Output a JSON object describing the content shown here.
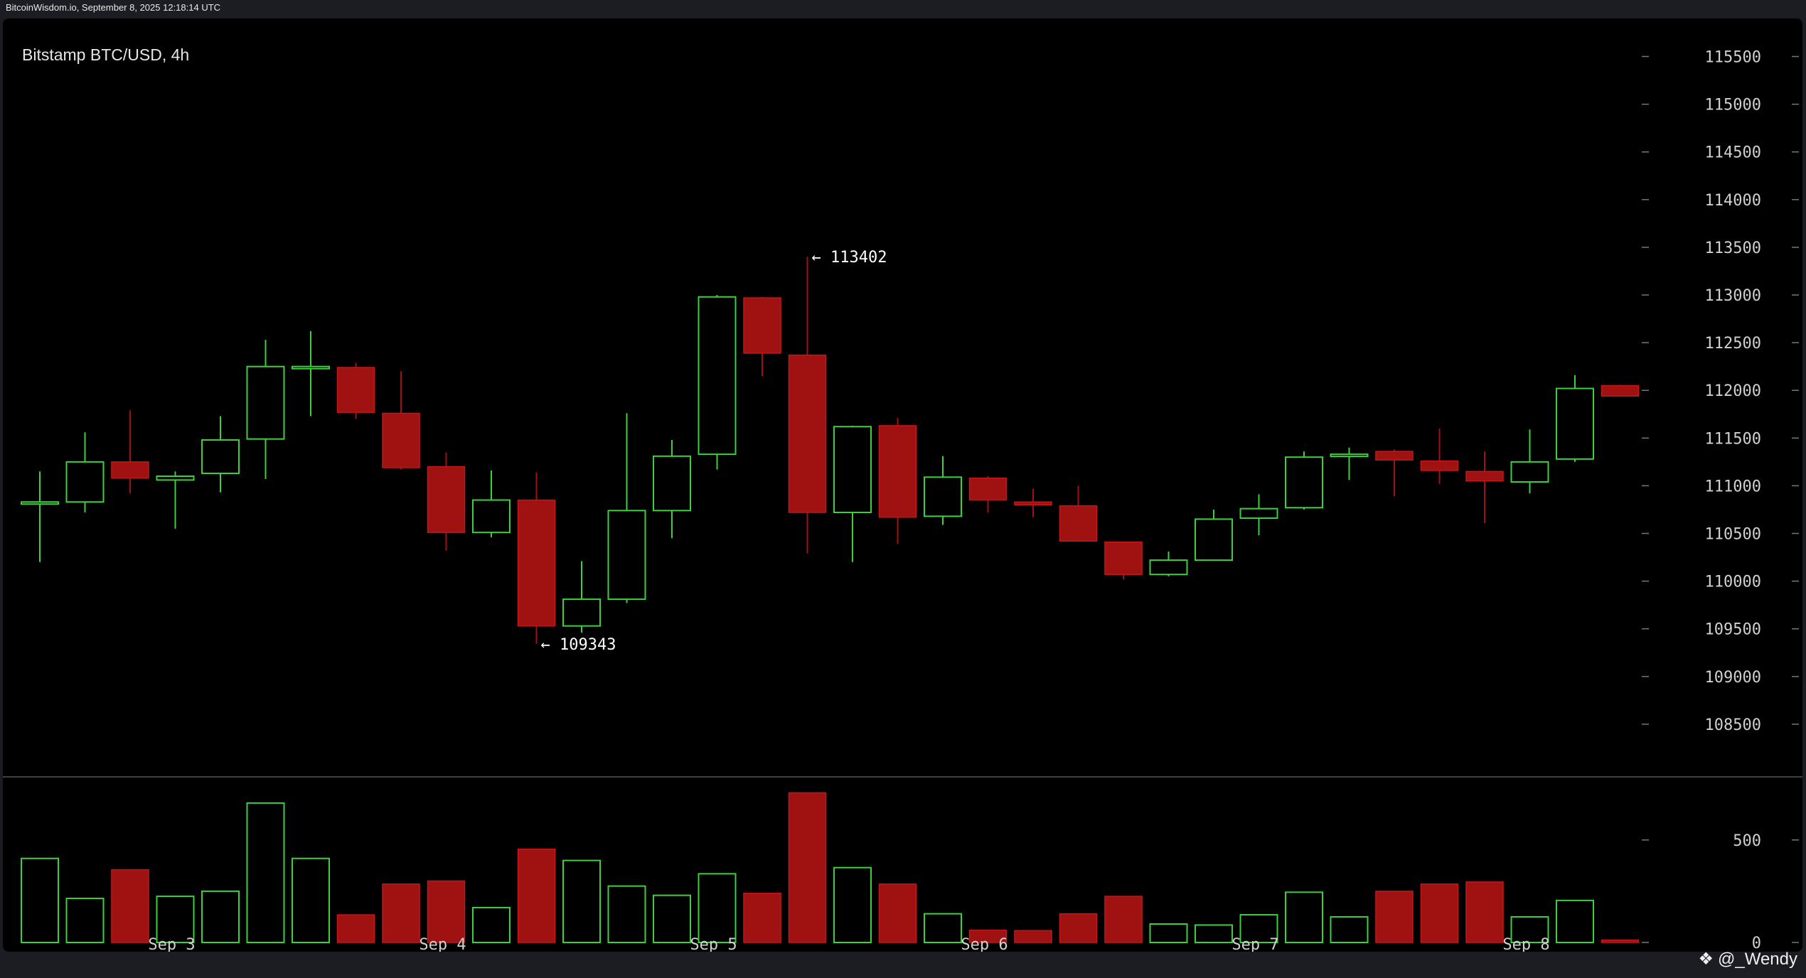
{
  "source_line": "BitcoinWisdom.io, September 8, 2025 12:18:14 UTC",
  "watermark": {
    "handle": "@_Wendy",
    "icon": "bitget-logo-icon"
  },
  "colors": {
    "up": "#3ad13a",
    "down": "#a01212",
    "background": "#000000"
  },
  "chart_data": {
    "type": "candlestick",
    "title": "Bitstamp BTC/USD, 4h",
    "price_ticks": [
      108500,
      109000,
      109500,
      110000,
      110500,
      111000,
      111500,
      112000,
      112500,
      113000,
      113500,
      114000,
      114500,
      115000,
      115500
    ],
    "ylim": [
      108000,
      115750
    ],
    "x_ticks": [
      {
        "label": "Sep 3",
        "index": 3
      },
      {
        "label": "Sep 4",
        "index": 9
      },
      {
        "label": "Sep 5",
        "index": 15
      },
      {
        "label": "Sep 6",
        "index": 21
      },
      {
        "label": "Sep 7",
        "index": 27
      },
      {
        "label": "Sep 8",
        "index": 33
      }
    ],
    "annotations": [
      {
        "text": "← 113402",
        "index": 17,
        "price": 113402
      },
      {
        "text": "← 109343",
        "index": 11,
        "price": 109343
      }
    ],
    "candles": [
      {
        "o": 110830,
        "h": 111150,
        "l": 110200,
        "c": 110830,
        "v": 410
      },
      {
        "o": 110830,
        "h": 111560,
        "l": 110720,
        "c": 111250,
        "v": 215
      },
      {
        "o": 111250,
        "h": 111790,
        "l": 110920,
        "c": 111080,
        "v": 355
      },
      {
        "o": 111060,
        "h": 111150,
        "l": 110550,
        "c": 111100,
        "v": 225
      },
      {
        "o": 111130,
        "h": 111730,
        "l": 110930,
        "c": 111480,
        "v": 250
      },
      {
        "o": 111490,
        "h": 112530,
        "l": 111070,
        "c": 112250,
        "v": 680
      },
      {
        "o": 112250,
        "h": 112620,
        "l": 111730,
        "c": 112250,
        "v": 410
      },
      {
        "o": 112240,
        "h": 112290,
        "l": 111700,
        "c": 111770,
        "v": 135
      },
      {
        "o": 111760,
        "h": 112200,
        "l": 111170,
        "c": 111190,
        "v": 285
      },
      {
        "o": 111200,
        "h": 111350,
        "l": 110320,
        "c": 110510,
        "v": 300
      },
      {
        "o": 110510,
        "h": 111160,
        "l": 110460,
        "c": 110850,
        "v": 170
      },
      {
        "o": 110850,
        "h": 111140,
        "l": 109343,
        "c": 109530,
        "v": 455
      },
      {
        "o": 109530,
        "h": 110210,
        "l": 109460,
        "c": 109810,
        "v": 400
      },
      {
        "o": 109810,
        "h": 111760,
        "l": 109770,
        "c": 110740,
        "v": 275
      },
      {
        "o": 110740,
        "h": 111480,
        "l": 110450,
        "c": 111310,
        "v": 230
      },
      {
        "o": 111330,
        "h": 113000,
        "l": 111170,
        "c": 112980,
        "v": 335
      },
      {
        "o": 112970,
        "h": 112980,
        "l": 112150,
        "c": 112390,
        "v": 240
      },
      {
        "o": 112370,
        "h": 113402,
        "l": 110290,
        "c": 110720,
        "v": 730
      },
      {
        "o": 110720,
        "h": 111630,
        "l": 110200,
        "c": 111620,
        "v": 365
      },
      {
        "o": 111630,
        "h": 111710,
        "l": 110390,
        "c": 110670,
        "v": 285
      },
      {
        "o": 110680,
        "h": 111310,
        "l": 110590,
        "c": 111090,
        "v": 140
      },
      {
        "o": 111080,
        "h": 111100,
        "l": 110720,
        "c": 110850,
        "v": 60
      },
      {
        "o": 110830,
        "h": 110970,
        "l": 110670,
        "c": 110800,
        "v": 58
      },
      {
        "o": 110790,
        "h": 111000,
        "l": 110410,
        "c": 110420,
        "v": 140
      },
      {
        "o": 110410,
        "h": 110410,
        "l": 110020,
        "c": 110070,
        "v": 225
      },
      {
        "o": 110070,
        "h": 110310,
        "l": 110050,
        "c": 110220,
        "v": 90
      },
      {
        "o": 110220,
        "h": 110750,
        "l": 110220,
        "c": 110650,
        "v": 85
      },
      {
        "o": 110660,
        "h": 110910,
        "l": 110480,
        "c": 110760,
        "v": 135
      },
      {
        "o": 110770,
        "h": 111360,
        "l": 110750,
        "c": 111300,
        "v": 245
      },
      {
        "o": 111310,
        "h": 111400,
        "l": 111060,
        "c": 111330,
        "v": 125
      },
      {
        "o": 111360,
        "h": 111380,
        "l": 110890,
        "c": 111270,
        "v": 250
      },
      {
        "o": 111260,
        "h": 111600,
        "l": 111020,
        "c": 111160,
        "v": 285
      },
      {
        "o": 111150,
        "h": 111360,
        "l": 110610,
        "c": 111050,
        "v": 295
      },
      {
        "o": 111040,
        "h": 111590,
        "l": 110920,
        "c": 111250,
        "v": 125
      },
      {
        "o": 111280,
        "h": 112160,
        "l": 111250,
        "c": 112020,
        "v": 205
      },
      {
        "o": 112050,
        "h": 112060,
        "l": 111950,
        "c": 111940,
        "v": 12
      }
    ],
    "volume_axis": {
      "ticks": [
        0,
        500
      ],
      "ylim": [
        0,
        780
      ]
    }
  }
}
